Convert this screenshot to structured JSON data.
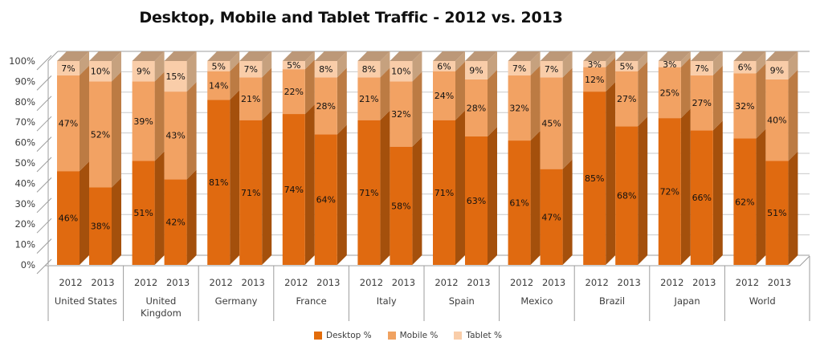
{
  "title": "Desktop, Mobile and Tablet Traffic - 2012 vs. 2013",
  "chart_data": {
    "type": "bar",
    "stacked": true,
    "unit": "%",
    "ylim": [
      0,
      100
    ],
    "y_tick_step": 10,
    "y_tick_labels": [
      "0%",
      "10%",
      "20%",
      "30%",
      "40%",
      "50%",
      "60%",
      "70%",
      "80%",
      "90%",
      "100%"
    ],
    "grid": true,
    "legend_position": "bottom",
    "legend": [
      {
        "label": "Desktop %",
        "color": "#E36C09"
      },
      {
        "label": "Mobile %",
        "color": "#F0A261"
      },
      {
        "label": "Tablet %",
        "color": "#F9CDA9"
      }
    ],
    "series_names": [
      "Desktop %",
      "Mobile %",
      "Tablet %"
    ],
    "groups": [
      {
        "country": "United States",
        "country_lines": [
          "United States"
        ],
        "bars": [
          {
            "year": "2012",
            "desktop": 46,
            "mobile": 47,
            "tablet": 7
          },
          {
            "year": "2013",
            "desktop": 38,
            "mobile": 52,
            "tablet": 10
          }
        ]
      },
      {
        "country": "United Kingdom",
        "country_lines": [
          "United",
          "Kingdom"
        ],
        "bars": [
          {
            "year": "2012",
            "desktop": 51,
            "mobile": 39,
            "tablet": 9
          },
          {
            "year": "2013",
            "desktop": 42,
            "mobile": 43,
            "tablet": 15
          }
        ]
      },
      {
        "country": "Germany",
        "country_lines": [
          "Germany"
        ],
        "bars": [
          {
            "year": "2012",
            "desktop": 81,
            "mobile": 14,
            "tablet": 5
          },
          {
            "year": "2013",
            "desktop": 71,
            "mobile": 21,
            "tablet": 7
          }
        ]
      },
      {
        "country": "France",
        "country_lines": [
          "France"
        ],
        "bars": [
          {
            "year": "2012",
            "desktop": 74,
            "mobile": 22,
            "tablet": 5
          },
          {
            "year": "2013",
            "desktop": 64,
            "mobile": 28,
            "tablet": 8
          }
        ]
      },
      {
        "country": "Italy",
        "country_lines": [
          "Italy"
        ],
        "bars": [
          {
            "year": "2012",
            "desktop": 71,
            "mobile": 21,
            "tablet": 8
          },
          {
            "year": "2013",
            "desktop": 58,
            "mobile": 32,
            "tablet": 10
          }
        ]
      },
      {
        "country": "Spain",
        "country_lines": [
          "Spain"
        ],
        "bars": [
          {
            "year": "2012",
            "desktop": 71,
            "mobile": 24,
            "tablet": 6
          },
          {
            "year": "2013",
            "desktop": 63,
            "mobile": 28,
            "tablet": 9
          }
        ]
      },
      {
        "country": "Mexico",
        "country_lines": [
          "Mexico"
        ],
        "bars": [
          {
            "year": "2012",
            "desktop": 61,
            "mobile": 32,
            "tablet": 7
          },
          {
            "year": "2013",
            "desktop": 47,
            "mobile": 45,
            "tablet": 7
          }
        ]
      },
      {
        "country": "Brazil",
        "country_lines": [
          "Brazil"
        ],
        "bars": [
          {
            "year": "2012",
            "desktop": 85,
            "mobile": 12,
            "tablet": 3
          },
          {
            "year": "2013",
            "desktop": 68,
            "mobile": 27,
            "tablet": 5
          }
        ]
      },
      {
        "country": "Japan",
        "country_lines": [
          "Japan"
        ],
        "bars": [
          {
            "year": "2012",
            "desktop": 72,
            "mobile": 25,
            "tablet": 3
          },
          {
            "year": "2013",
            "desktop": 66,
            "mobile": 27,
            "tablet": 7
          }
        ]
      },
      {
        "country": "World",
        "country_lines": [
          "World"
        ],
        "bars": [
          {
            "year": "2012",
            "desktop": 62,
            "mobile": 32,
            "tablet": 6
          },
          {
            "year": "2013",
            "desktop": 51,
            "mobile": 40,
            "tablet": 9
          }
        ]
      }
    ],
    "colors": {
      "desktop": {
        "front": "#E06A10",
        "side": "#A4500C"
      },
      "mobile": {
        "front": "#F2A263",
        "side": "#BC7B43"
      },
      "tablet": {
        "front": "#F9CDA9",
        "side": "#C6A17E",
        "top": "#BC9878"
      },
      "wall_line": "#9C9C9C",
      "gridline": "#C9C9C9",
      "axis_text": "#3C3C3C",
      "bar_label_text": "#111111"
    }
  }
}
